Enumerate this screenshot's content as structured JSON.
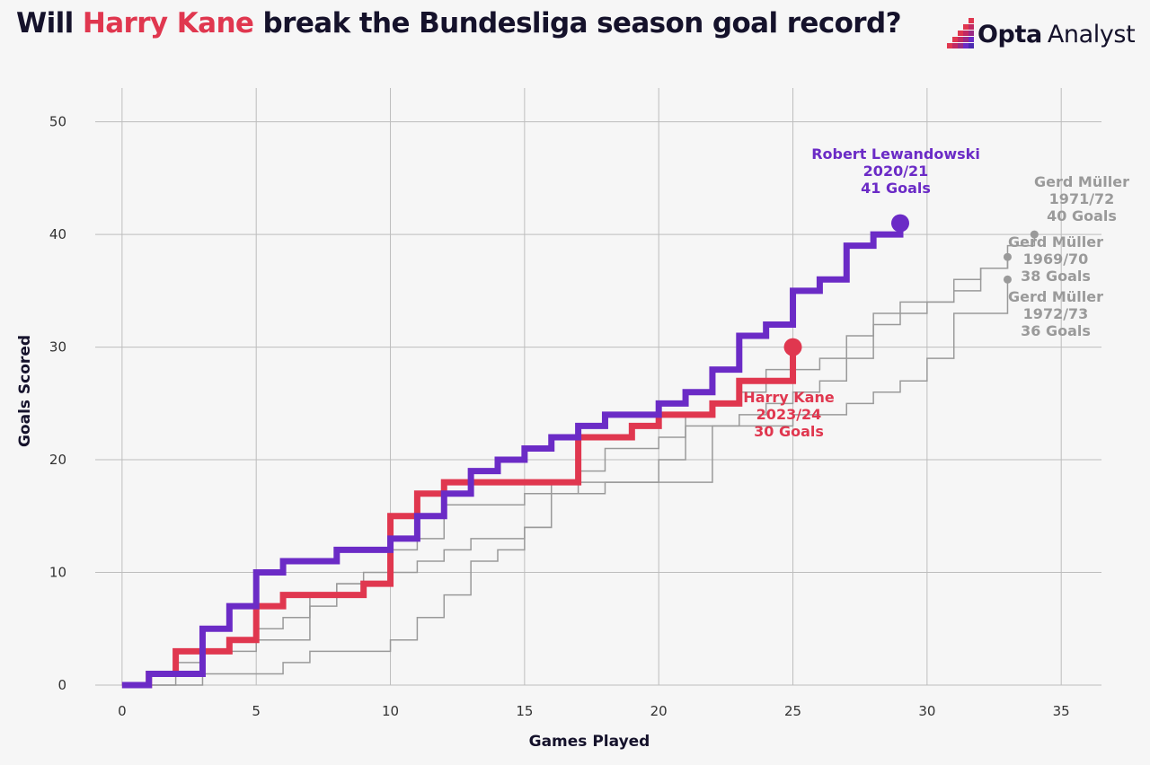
{
  "header": {
    "title_prefix": "Will ",
    "title_highlight": "Harry Kane",
    "title_suffix": " break the Bundesliga season goal record?",
    "brand_bold": "Opta",
    "brand_light": "Analyst",
    "highlight_color": "#e0374f"
  },
  "chart_data": {
    "type": "line",
    "subtype": "step",
    "title": "Will Harry Kane break the Bundesliga season goal record?",
    "xlabel": "Games Played",
    "ylabel": "Goals Scored",
    "xlim": [
      -1,
      36.5
    ],
    "ylim": [
      0,
      53
    ],
    "xticks": [
      0,
      5,
      10,
      15,
      20,
      25,
      30,
      35
    ],
    "yticks": [
      0,
      10,
      20,
      30,
      40,
      50
    ],
    "grid": true,
    "series": [
      {
        "name": "Gerd Müller 1971/72",
        "color": "#9a9a9a",
        "width": 1.5,
        "values": [
          0,
          1,
          1,
          3,
          4,
          5,
          6,
          7,
          9,
          10,
          12,
          13,
          16,
          16,
          16,
          17,
          18,
          19,
          21,
          21,
          22,
          24,
          25,
          26,
          28,
          28,
          29,
          31,
          33,
          33,
          34,
          35,
          37,
          39,
          40
        ],
        "label_lines": [
          "Gerd Müller",
          "1971/72",
          "40 Goals"
        ]
      },
      {
        "name": "Gerd Müller 1969/70",
        "color": "#9a9a9a",
        "width": 1.5,
        "values": [
          0,
          0,
          0,
          1,
          1,
          1,
          2,
          3,
          3,
          3,
          4,
          6,
          8,
          11,
          12,
          14,
          17,
          18,
          18,
          18,
          20,
          23,
          23,
          24,
          25,
          26,
          27,
          29,
          32,
          34,
          34,
          36,
          37,
          38
        ],
        "label_lines": [
          "Gerd Müller",
          "1969/70",
          "38 Goals"
        ]
      },
      {
        "name": "Gerd Müller 1972/73",
        "color": "#9a9a9a",
        "width": 1.5,
        "values": [
          0,
          0,
          2,
          3,
          3,
          4,
          4,
          8,
          9,
          9,
          10,
          11,
          12,
          13,
          13,
          14,
          17,
          17,
          18,
          18,
          18,
          18,
          23,
          23,
          23,
          24,
          24,
          25,
          26,
          27,
          29,
          33,
          33,
          36
        ],
        "label_lines": [
          "Gerd Müller",
          "1972/73",
          "36 Goals"
        ]
      },
      {
        "name": "Harry Kane 2023/24",
        "color": "#e0374f",
        "width": 7,
        "values": [
          0,
          1,
          3,
          3,
          4,
          7,
          8,
          8,
          8,
          9,
          15,
          17,
          18,
          18,
          18,
          18,
          18,
          22,
          22,
          23,
          24,
          24,
          25,
          27,
          27,
          30
        ],
        "end_marker": true,
        "label_lines": [
          "Harry Kane",
          "2023/24",
          "30 Goals"
        ]
      },
      {
        "name": "Robert Lewandowski 2020/21",
        "color": "#6b2bc6",
        "width": 7,
        "values": [
          0,
          1,
          1,
          5,
          7,
          10,
          11,
          11,
          12,
          12,
          13,
          15,
          17,
          19,
          20,
          21,
          22,
          23,
          24,
          24,
          25,
          26,
          28,
          31,
          32,
          35,
          36,
          39,
          40,
          41
        ],
        "end_marker": true,
        "label_lines": [
          "Robert Lewandowski",
          "2020/21",
          "41 Goals"
        ]
      }
    ]
  }
}
